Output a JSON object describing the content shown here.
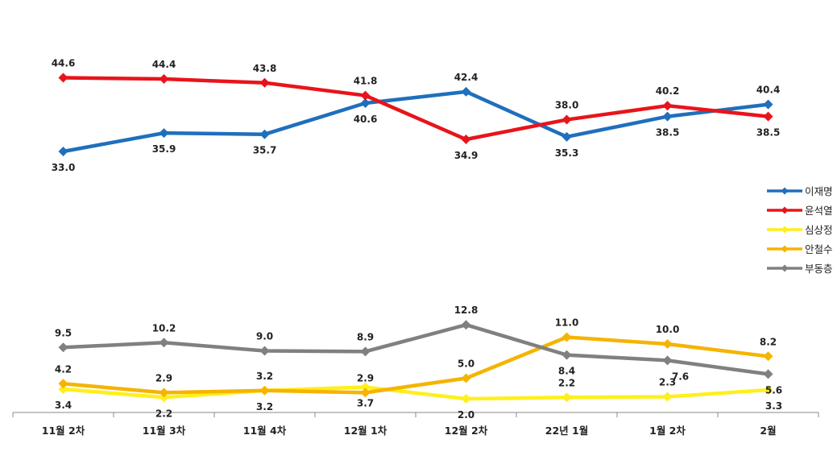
{
  "chart_data": {
    "type": "line",
    "categories": [
      "11월 2차",
      "11월 3차",
      "11월 4차",
      "12월 1차",
      "12월 2차",
      "22년 1월",
      "1월 2차",
      "2월"
    ],
    "series": [
      {
        "name": "이재명",
        "color": "#1f6fbd",
        "values": [
          33.0,
          35.9,
          35.7,
          40.6,
          42.4,
          35.3,
          38.5,
          40.4
        ]
      },
      {
        "name": "윤석열",
        "color": "#e8141b",
        "values": [
          44.6,
          44.4,
          43.8,
          41.8,
          34.9,
          38.0,
          40.2,
          38.5
        ]
      },
      {
        "name": "심상정",
        "color": "#ffef1c",
        "values": [
          3.4,
          2.2,
          3.2,
          3.7,
          2.0,
          2.2,
          2.3,
          3.3
        ]
      },
      {
        "name": "안철수",
        "color": "#f5b400",
        "values": [
          4.2,
          2.9,
          3.2,
          2.9,
          5.0,
          11.0,
          10.0,
          8.2
        ]
      },
      {
        "name": "부동층",
        "color": "#808080",
        "values": [
          9.5,
          10.2,
          9.0,
          8.9,
          12.8,
          8.4,
          7.6,
          5.6
        ]
      }
    ],
    "data_labels": [
      [
        "33.0",
        "35.9",
        "35.7",
        "40.6",
        "42.4",
        "35.3",
        "38.5",
        "40.4"
      ],
      [
        "44.6",
        "44.4",
        "43.8",
        "41.8",
        "34.9",
        "38.0",
        "40.2",
        "38.5"
      ],
      [
        "3.4",
        "2.2",
        "3.2",
        "3.7",
        "2.0",
        "2.2",
        "2.3",
        "3.3"
      ],
      [
        "4.2",
        "2.9",
        "3.2",
        "2.9",
        "5.0",
        "11.0",
        "10.0",
        "8.2"
      ],
      [
        "9.5",
        "10.2",
        "9.0",
        "8.9",
        "12.8",
        "8.4",
        "7.6",
        "5.6"
      ]
    ],
    "legend": {
      "position": "right"
    },
    "grid": false
  }
}
